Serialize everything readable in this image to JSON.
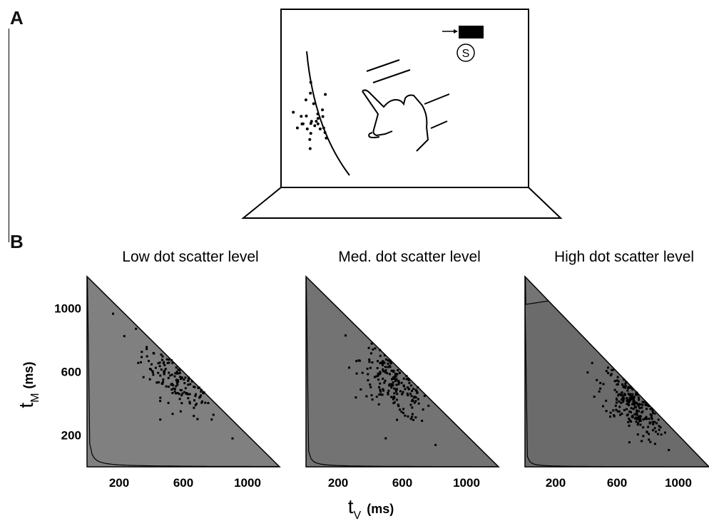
{
  "panel_labels": {
    "a": "A",
    "b": "B"
  },
  "apparatus": {
    "target_symbol": "S"
  },
  "chart_data": [
    {
      "type": "scatter",
      "title": "Low dot scatter level",
      "contour_levels": 9,
      "shading_min": 0.96,
      "shading_max": 0.5,
      "cluster": {
        "x": 580,
        "y": 590,
        "spread": 120,
        "n": 260
      },
      "contour_scale": 1.0
    },
    {
      "type": "scatter",
      "title": "Med. dot scatter level",
      "contour_levels": 11,
      "shading_min": 0.88,
      "shading_max": 0.45,
      "cluster": {
        "x": 560,
        "y": 540,
        "spread": 110,
        "n": 240
      },
      "contour_scale": 0.75
    },
    {
      "type": "scatter",
      "title": "High dot scatter level",
      "contour_levels": 13,
      "shading_min": 0.82,
      "shading_max": 0.42,
      "cluster": {
        "x": 700,
        "y": 400,
        "spread": 100,
        "n": 260
      },
      "contour_scale": 0.55
    }
  ],
  "axes": {
    "x_ticks": [
      "200",
      "600",
      "1000"
    ],
    "x_tick_values": [
      200,
      600,
      1000
    ],
    "y_ticks": [
      "1000",
      "600",
      "200"
    ],
    "y_tick_values": [
      1000,
      600,
      200
    ],
    "xlim": [
      0,
      1200
    ],
    "ylim": [
      0,
      1200
    ],
    "xlabel_main": "t",
    "xlabel_sub": "V",
    "xlabel_unit": "(ms)",
    "ylabel_main": "t",
    "ylabel_sub": "M",
    "ylabel_unit": "(ms)"
  }
}
